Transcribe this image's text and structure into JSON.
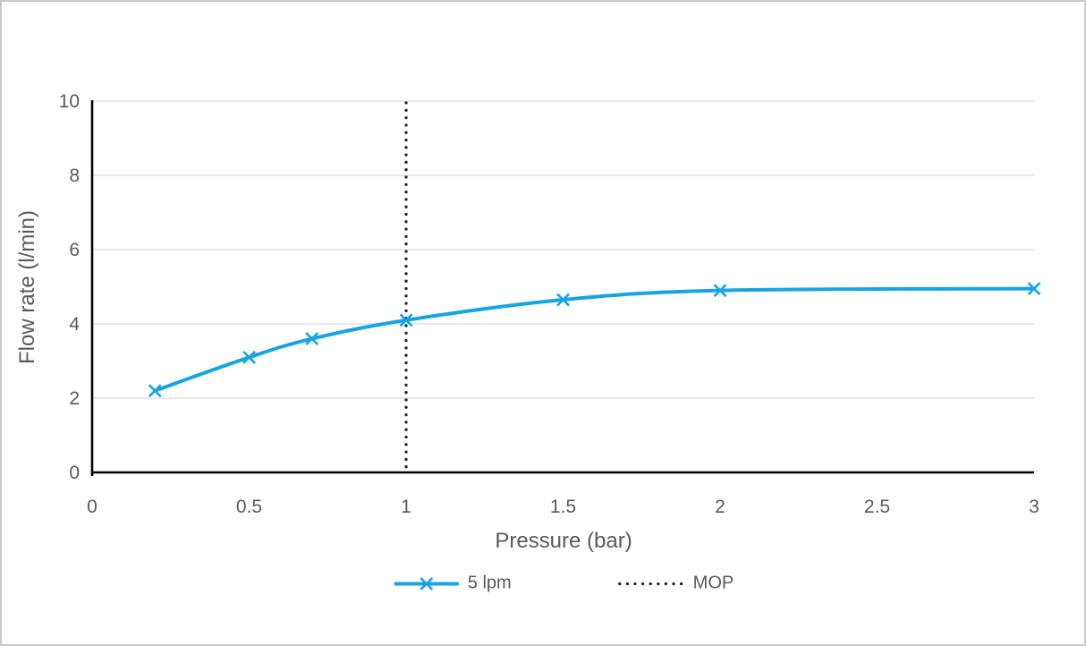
{
  "window": {
    "background": "#FFFFFF",
    "border_color": "#C9C9C9"
  },
  "chart_data": {
    "type": "line",
    "title": "",
    "xlabel": "Pressure (bar)",
    "ylabel": "Flow rate (l/min)",
    "xlim": [
      0,
      3
    ],
    "ylim": [
      0,
      10
    ],
    "xtick_values": [
      0,
      0.5,
      1,
      1.5,
      2,
      2.5,
      3
    ],
    "xtick_labels": [
      "0",
      "0.5",
      "1",
      "1.5",
      "2",
      "2.5",
      "3"
    ],
    "ytick_values": [
      0,
      2,
      4,
      6,
      8,
      10
    ],
    "ytick_labels": [
      "0",
      "2",
      "4",
      "6",
      "8",
      "10"
    ],
    "grid": "horizontal-only",
    "legend_position": "bottom-center",
    "series": [
      {
        "name": "5 lpm",
        "color": "#16A4E2",
        "marker": "x",
        "line_style": "solid-smooth",
        "points": [
          [
            0.2,
            2.2
          ],
          [
            0.5,
            3.1
          ],
          [
            0.7,
            3.6
          ],
          [
            1,
            4.1
          ],
          [
            1.5,
            4.65
          ],
          [
            2,
            4.9
          ],
          [
            3,
            4.95
          ]
        ]
      }
    ],
    "reference_lines": [
      {
        "name": "MOP",
        "orientation": "vertical",
        "x": 1,
        "line_style": "dotted",
        "color": "#1F1F1F"
      }
    ]
  },
  "styles": {
    "text_color": "#595959",
    "gridline_color": "#D9D9D9",
    "axis_color": "#000000"
  }
}
